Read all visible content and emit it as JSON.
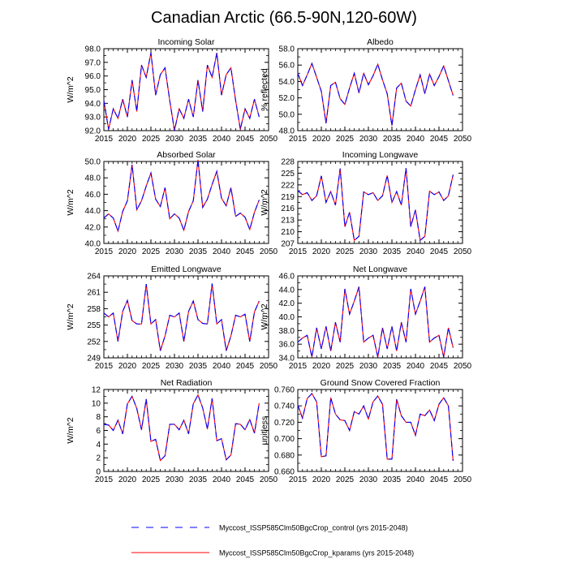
{
  "chart_data": {
    "title": "Canadian Arctic (66.5-90N,120-60W)",
    "years": [
      2015,
      2016,
      2017,
      2018,
      2019,
      2020,
      2021,
      2022,
      2023,
      2024,
      2025,
      2026,
      2027,
      2028,
      2029,
      2030,
      2031,
      2032,
      2033,
      2034,
      2035,
      2036,
      2037,
      2038,
      2039,
      2040,
      2041,
      2042,
      2043,
      2044,
      2045,
      2046,
      2047,
      2048
    ],
    "xlim": [
      2015,
      2050
    ],
    "xticks": [
      2015,
      2020,
      2025,
      2030,
      2035,
      2040,
      2045,
      2050
    ],
    "legend": [
      {
        "label": "Myccost_ISSP585Clm50BgcCrop_control (yrs 2015-2048)",
        "color": "#0000ff",
        "style": "dashed"
      },
      {
        "label": "Myccost_ISSP585Clm50BgcCrop_kparams (yrs 2015-2048)",
        "color": "#ff0000",
        "style": "solid"
      }
    ],
    "panels": [
      {
        "title": "Incoming Solar",
        "ylabel": "W/m^2",
        "ylim": [
          92.0,
          98.0
        ],
        "yticks": [
          "92.0",
          "93.0",
          "94.0",
          "95.0",
          "96.0",
          "97.0",
          "98.0"
        ],
        "values": [
          94.2,
          92.1,
          93.6,
          92.9,
          94.3,
          93.0,
          95.7,
          93.4,
          96.8,
          95.9,
          97.7,
          94.6,
          96.1,
          96.6,
          94.2,
          92.0,
          93.6,
          92.9,
          94.3,
          93.0,
          95.7,
          93.4,
          96.8,
          95.9,
          97.7,
          94.6,
          96.1,
          96.6,
          94.2,
          92.1,
          93.6,
          92.9,
          94.3,
          93.0
        ]
      },
      {
        "title": "Albedo",
        "ylabel": "% reflected",
        "ylim": [
          48.0,
          58.0
        ],
        "yticks": [
          "48.0",
          "50.0",
          "52.0",
          "54.0",
          "56.0",
          "58.0"
        ],
        "values": [
          55.0,
          53.5,
          54.8,
          56.2,
          54.5,
          52.8,
          48.9,
          53.5,
          53.9,
          51.9,
          51.2,
          53.2,
          55.0,
          52.6,
          55.0,
          53.6,
          54.7,
          56.1,
          54.2,
          52.5,
          48.6,
          53.2,
          53.8,
          51.6,
          51.0,
          53.0,
          54.8,
          52.5,
          54.9,
          53.5,
          54.6,
          55.9,
          54.1,
          52.3
        ]
      },
      {
        "title": "Absorbed Solar",
        "ylabel": "W/m^2",
        "ylim": [
          40.0,
          50.0
        ],
        "yticks": [
          "40.0",
          "42.0",
          "44.0",
          "46.0",
          "48.0",
          "50.0"
        ],
        "values": [
          43.1,
          43.6,
          43.1,
          41.5,
          43.9,
          45.2,
          49.6,
          44.1,
          45.2,
          47.0,
          48.6,
          45.4,
          44.5,
          46.8,
          43.0,
          43.6,
          43.1,
          41.6,
          43.9,
          45.2,
          50.2,
          44.4,
          45.4,
          47.2,
          48.8,
          45.5,
          44.6,
          46.8,
          43.3,
          43.7,
          43.2,
          41.7,
          43.8,
          45.3
        ]
      },
      {
        "title": "Incoming Longwave",
        "ylabel": "W/m^2",
        "ylim": [
          207,
          228
        ],
        "yticks": [
          "207",
          "210",
          "213",
          "216",
          "219",
          "222",
          "225",
          "228"
        ],
        "values": [
          220.5,
          219.5,
          220.0,
          218.0,
          219.2,
          224.3,
          217.5,
          220.3,
          216.8,
          226.2,
          211.3,
          215.0,
          207.8,
          208.8,
          220.2,
          219.5,
          220.0,
          218.0,
          219.2,
          224.4,
          217.5,
          220.3,
          216.8,
          226.3,
          211.3,
          215.6,
          207.8,
          208.8,
          220.4,
          219.5,
          220.2,
          218.0,
          219.2,
          224.6
        ]
      },
      {
        "title": "Emitted Longwave",
        "ylabel": "W/m^2",
        "ylim": [
          249,
          264
        ],
        "yticks": [
          "249",
          "252",
          "255",
          "258",
          "261",
          "264"
        ],
        "values": [
          257.2,
          256.5,
          257.2,
          252.0,
          257.5,
          259.5,
          255.8,
          255.2,
          255.2,
          262.5,
          255.2,
          256.0,
          250.3,
          253.0,
          256.8,
          256.5,
          257.2,
          252.0,
          257.5,
          259.4,
          256.0,
          255.3,
          255.2,
          262.6,
          255.2,
          256.0,
          250.3,
          253.0,
          256.8,
          256.5,
          257.0,
          252.0,
          257.4,
          259.4
        ]
      },
      {
        "title": "Net Longwave",
        "ylabel": "W/m^2",
        "ylim": [
          34.0,
          46.0
        ],
        "yticks": [
          "34.0",
          "36.0",
          "38.0",
          "40.0",
          "42.0",
          "44.0",
          "46.0"
        ],
        "values": [
          36.3,
          36.9,
          37.3,
          34.1,
          38.4,
          35.3,
          38.6,
          35.0,
          39.2,
          36.3,
          44.1,
          40.4,
          42.3,
          44.4,
          36.3,
          36.9,
          37.3,
          34.1,
          38.4,
          35.3,
          38.6,
          35.0,
          39.2,
          36.3,
          44.1,
          40.4,
          42.3,
          44.4,
          36.3,
          36.9,
          37.3,
          34.1,
          38.4,
          35.5
        ]
      },
      {
        "title": "Net Radiation",
        "ylabel": "W/m^2",
        "ylim": [
          0,
          12
        ],
        "yticks": [
          "0",
          "2",
          "4",
          "6",
          "8",
          "10",
          "12"
        ],
        "values": [
          6.9,
          6.8,
          6.0,
          7.5,
          5.5,
          9.9,
          11.0,
          9.2,
          6.1,
          10.6,
          4.4,
          4.7,
          1.6,
          2.3,
          6.9,
          6.9,
          6.1,
          7.5,
          5.5,
          9.9,
          11.2,
          9.3,
          6.2,
          10.7,
          4.5,
          4.8,
          1.7,
          2.4,
          7.0,
          6.9,
          6.1,
          7.6,
          5.6,
          10.0
        ]
      },
      {
        "title": "Ground Snow Covered Fraction",
        "ylabel": "unitless",
        "ylim": [
          0.66,
          0.76
        ],
        "yticks": [
          "0.660",
          "0.680",
          "0.700",
          "0.720",
          "0.740",
          "0.760"
        ],
        "values": [
          0.741,
          0.725,
          0.749,
          0.755,
          0.745,
          0.678,
          0.679,
          0.75,
          0.73,
          0.723,
          0.722,
          0.71,
          0.733,
          0.73,
          0.74,
          0.724,
          0.745,
          0.752,
          0.742,
          0.675,
          0.675,
          0.748,
          0.728,
          0.72,
          0.72,
          0.704,
          0.73,
          0.728,
          0.735,
          0.722,
          0.742,
          0.75,
          0.74,
          0.673
        ]
      }
    ]
  }
}
